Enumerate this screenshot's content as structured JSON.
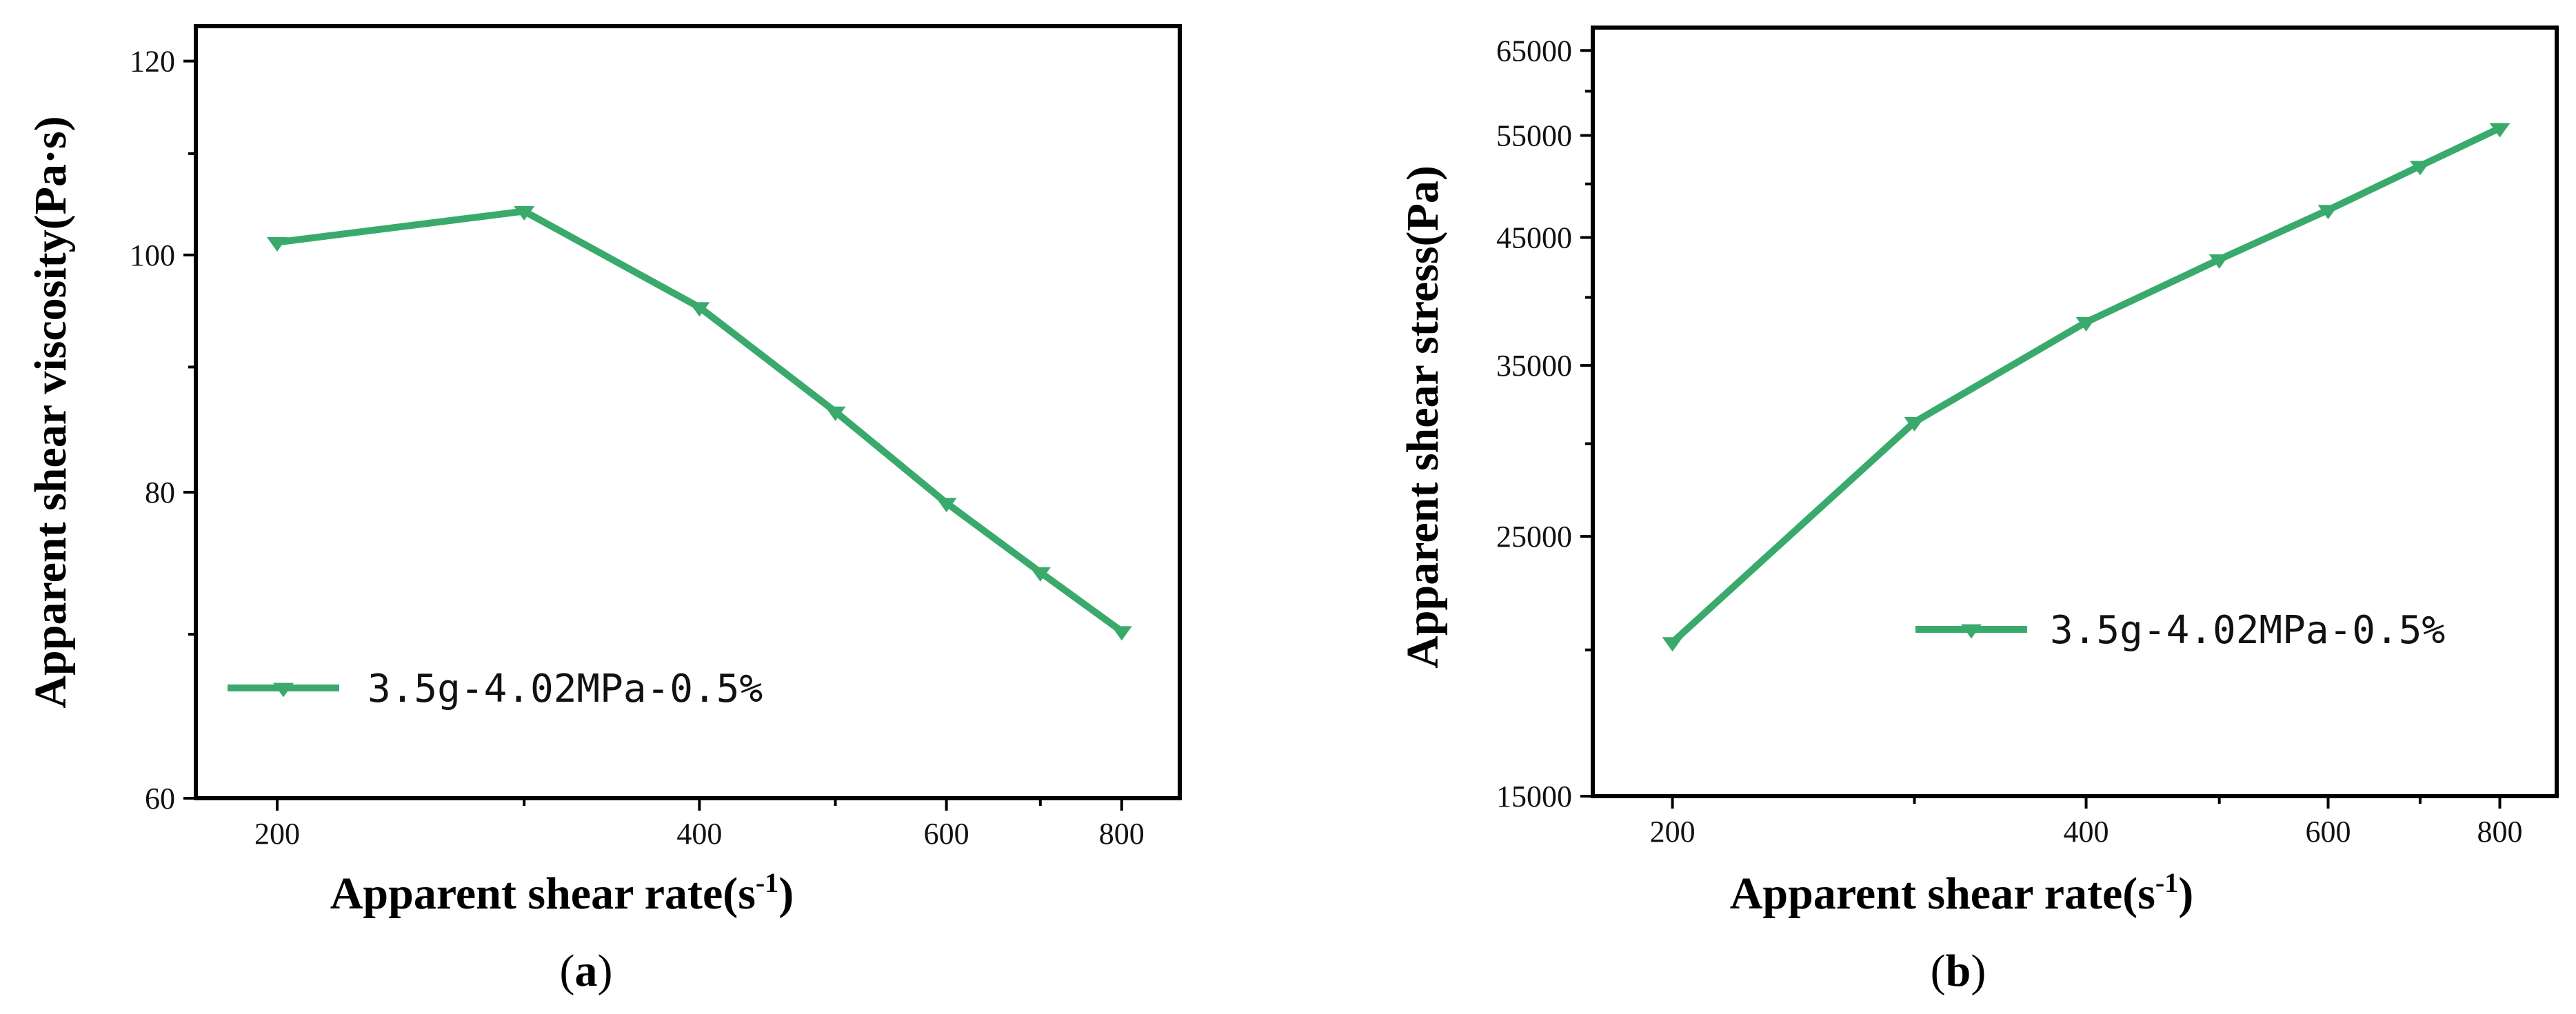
{
  "figure": {
    "series_color": "#3aaa6c",
    "frame_color": "#000000"
  },
  "chart_data": [
    {
      "id": "a",
      "type": "line",
      "panel_label": "a",
      "xlabel_main": "Apparent shear rate(s",
      "xlabel_sup": "-1",
      "xlabel_close": ")",
      "ylabel": "Apparent shear viscosity(Pa·s)",
      "x_scale": "log",
      "y_scale": "log",
      "xlim": [
        175,
        880
      ],
      "ylim": [
        60,
        124
      ],
      "x_ticks": [
        200,
        400,
        600,
        800
      ],
      "x_tick_labels": [
        "200",
        "400",
        "600",
        "800"
      ],
      "x_minor_ticks": [
        300,
        500,
        700
      ],
      "y_ticks": [
        60,
        80,
        100,
        120
      ],
      "y_tick_labels": [
        "60",
        "80",
        "100",
        "120"
      ],
      "y_minor_ticks": [
        70,
        90,
        110
      ],
      "legend_position": "bottom-left",
      "series": [
        {
          "name": "3.5g-4.02MPa-0.5%",
          "marker": "triangle-down",
          "x": [
            200,
            300,
            400,
            500,
            600,
            700,
            800
          ],
          "y": [
            101.2,
            104.2,
            95.2,
            86.3,
            79.2,
            74.2,
            70.2
          ]
        }
      ]
    },
    {
      "id": "b",
      "type": "line",
      "panel_label": "b",
      "xlabel_main": "Apparent shear rate(s",
      "xlabel_sup": "-1",
      "xlabel_close": ")",
      "ylabel": "Apparent shear stress(Pa)",
      "x_scale": "log",
      "y_scale": "log",
      "xlim": [
        175,
        880
      ],
      "ylim": [
        15000,
        68000
      ],
      "x_ticks": [
        200,
        400,
        600,
        800
      ],
      "x_tick_labels": [
        "200",
        "400",
        "600",
        "800"
      ],
      "x_minor_ticks": [
        300,
        500,
        700
      ],
      "y_ticks": [
        15000,
        25000,
        35000,
        45000,
        55000,
        65000
      ],
      "y_tick_labels": [
        "15000",
        "25000",
        "35000",
        "45000",
        "55000",
        "65000"
      ],
      "y_minor_ticks": [
        20000,
        30000,
        40000,
        50000,
        60000
      ],
      "legend_position": "lower-right",
      "series": [
        {
          "name": "3.5g-4.02MPa-0.5%",
          "marker": "triangle-down",
          "x": [
            200,
            300,
            400,
            500,
            600,
            700,
            800
          ],
          "y": [
            20300,
            31300,
            38100,
            43100,
            47500,
            51800,
            55800
          ]
        }
      ]
    }
  ]
}
